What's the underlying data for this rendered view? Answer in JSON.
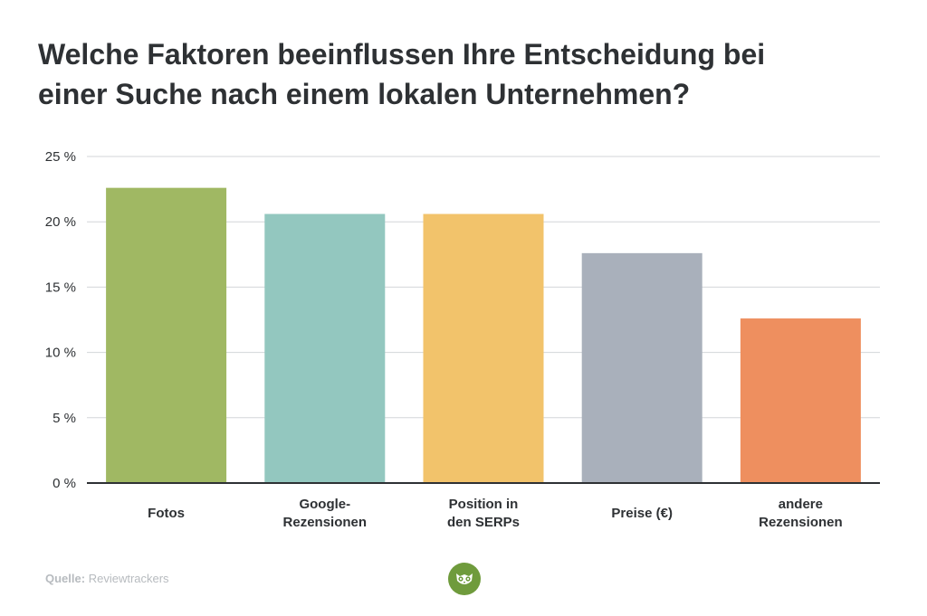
{
  "header": {
    "title_line1": "Welche Faktoren beeinflussen Ihre Entscheidung bei",
    "title_line2": "einer Suche nach einem lokalen Unternehmen?"
  },
  "chart_data": {
    "type": "bar",
    "title": "Welche Faktoren beeinflussen Ihre Entscheidung bei einer Suche nach einem lokalen Unternehmen?",
    "categories": [
      "Fotos",
      "Google-Rezensionen",
      "Position in den SERPs",
      "Preise (€)",
      "andere Rezensionen"
    ],
    "category_labels": [
      [
        "Fotos"
      ],
      [
        "Google-",
        "Rezensionen"
      ],
      [
        "Position in",
        "den SERPs"
      ],
      [
        "Preise (€)"
      ],
      [
        "andere",
        "Rezensionen"
      ]
    ],
    "values": [
      22.6,
      20.6,
      20.6,
      17.6,
      12.6
    ],
    "colors": [
      "#a0b863",
      "#93c7bf",
      "#f2c36b",
      "#a9b0bb",
      "#ee8f5f"
    ],
    "ylim": [
      0,
      25
    ],
    "yticks": [
      0,
      5,
      10,
      15,
      20,
      25
    ],
    "ytick_labels": [
      "0 %",
      "5 %",
      "10 %",
      "15 %",
      "20 %",
      "25 %"
    ],
    "xlabel": "",
    "ylabel": "",
    "grid": true,
    "legend": "none"
  },
  "footer": {
    "source_label": "Quelle:",
    "source_value": "Reviewtrackers",
    "logo_icon": "owl-icon"
  }
}
